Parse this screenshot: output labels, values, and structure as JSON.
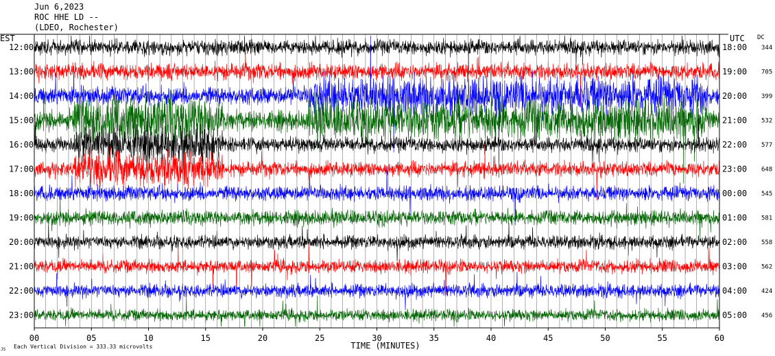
{
  "header": {
    "date": "Jun 6,2023",
    "station": "ROC HHE LD --",
    "network": "(LDEO, Rochester)"
  },
  "chart_data": {
    "type": "line",
    "title": "",
    "left_axis_label": "EST",
    "right_axis_label": "UTC",
    "dc_label": "DC",
    "xlabel": "TIME (MINUTES)",
    "x_range": [
      0,
      60
    ],
    "x_ticks": [
      "00",
      "05",
      "10",
      "15",
      "20",
      "25",
      "30",
      "35",
      "40",
      "45",
      "50",
      "55",
      "60"
    ],
    "scale_note": "Each Vertical Division =  333.33 microvolts",
    "corner_mark": "JS",
    "trace_colors": [
      "#000000",
      "#ff0000",
      "#0000ff",
      "#006400"
    ],
    "rows": [
      {
        "est": "12:00",
        "utc": "18:00",
        "dc": "344"
      },
      {
        "est": "13:00",
        "utc": "19:00",
        "dc": "705"
      },
      {
        "est": "14:00",
        "utc": "20:00",
        "dc": "399"
      },
      {
        "est": "15:00",
        "utc": "21:00",
        "dc": "532"
      },
      {
        "est": "16:00",
        "utc": "22:00",
        "dc": "577"
      },
      {
        "est": "17:00",
        "utc": "23:00",
        "dc": "648"
      },
      {
        "est": "18:00",
        "utc": "00:00",
        "dc": "545"
      },
      {
        "est": "19:00",
        "utc": "01:00",
        "dc": "581"
      },
      {
        "est": "20:00",
        "utc": "02:00",
        "dc": "558"
      },
      {
        "est": "21:00",
        "utc": "03:00",
        "dc": "562"
      },
      {
        "est": "22:00",
        "utc": "04:00",
        "dc": "424"
      },
      {
        "est": "23:00",
        "utc": "05:00",
        "dc": "456"
      }
    ]
  }
}
